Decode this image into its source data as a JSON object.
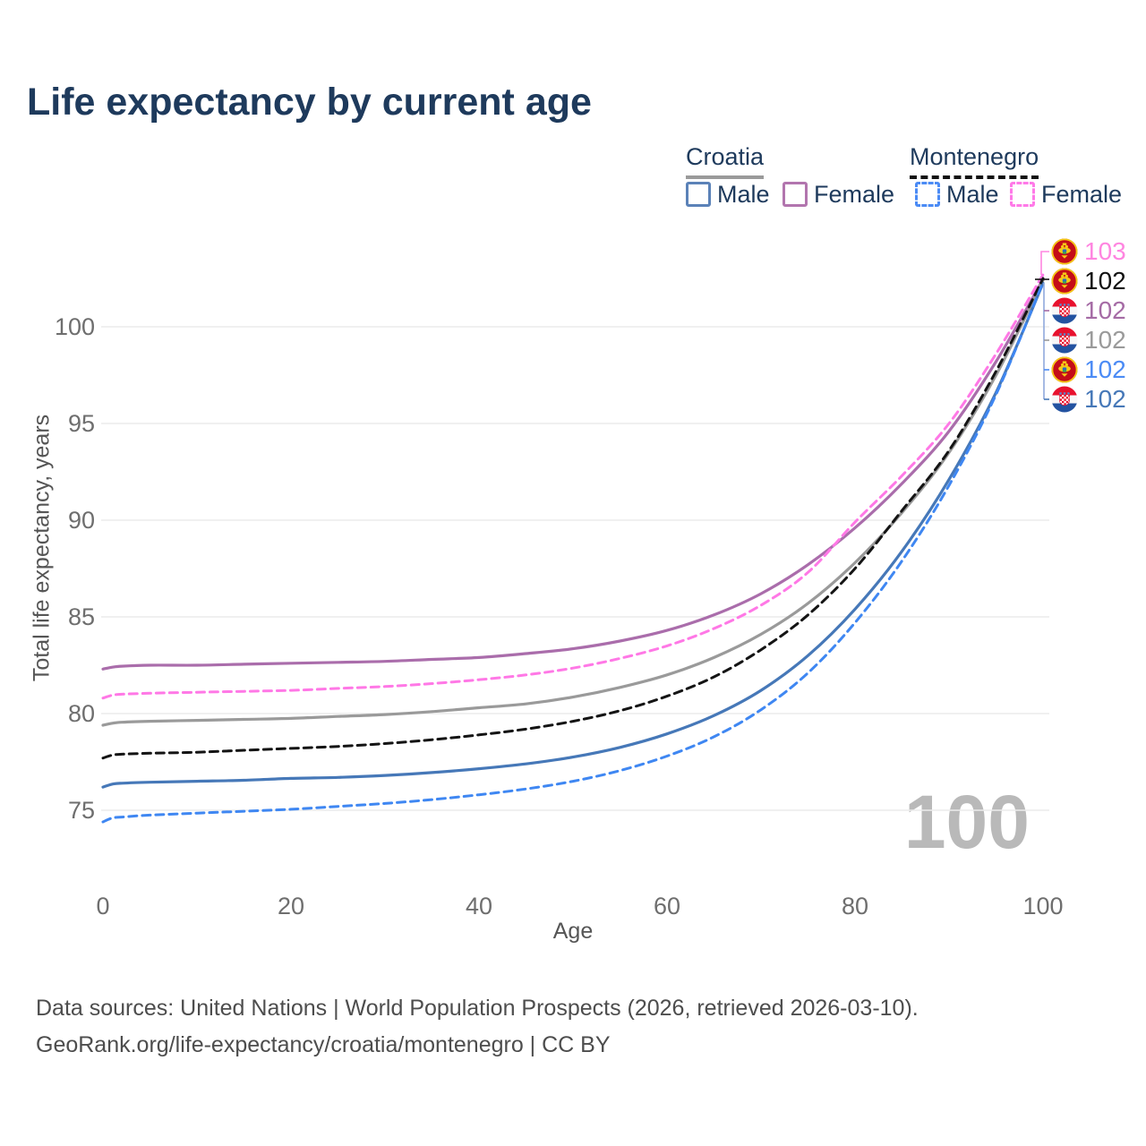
{
  "title": "Life expectancy by current age",
  "legend": {
    "groups": [
      {
        "label": "Croatia",
        "style": "solid"
      },
      {
        "label": "Montenegro",
        "style": "dashed"
      }
    ],
    "items": [
      {
        "label": "Male",
        "country": "Croatia"
      },
      {
        "label": "Female",
        "country": "Croatia"
      },
      {
        "label": "Male",
        "country": "Montenegro"
      },
      {
        "label": "Female",
        "country": "Montenegro"
      }
    ]
  },
  "watermark": "100",
  "end_labels": [
    {
      "country": "Montenegro",
      "series": "Female",
      "value": "103",
      "color": "#ff85e0"
    },
    {
      "country": "Montenegro",
      "series": "Total",
      "value": "102",
      "color": "#111111"
    },
    {
      "country": "Croatia",
      "series": "Female",
      "value": "102",
      "color": "#a56ba5"
    },
    {
      "country": "Croatia",
      "series": "Total",
      "value": "102",
      "color": "#9a9a9a"
    },
    {
      "country": "Montenegro",
      "series": "Male",
      "value": "102",
      "color": "#4b8bf5"
    },
    {
      "country": "Croatia",
      "series": "Male",
      "value": "102",
      "color": "#4678b8"
    }
  ],
  "footer": {
    "line1": "Data sources: United Nations | World Population Prospects (2026, retrieved 2026-03-10).",
    "line2": "GeoRank.org/life-expectancy/croatia/montenegro | CC BY"
  },
  "chart_data": {
    "type": "line",
    "title": "Life expectancy by current age",
    "xlabel": "Age",
    "ylabel": "Total life expectancy, years",
    "xlim": [
      0,
      100
    ],
    "ylim": [
      73.5,
      103.5
    ],
    "xticks": [
      0,
      20,
      40,
      60,
      80,
      100
    ],
    "yticks": [
      75,
      80,
      85,
      90,
      95,
      100
    ],
    "grid": "horizontal",
    "legend_position": "top-right",
    "x": [
      0,
      1,
      2,
      5,
      10,
      15,
      20,
      25,
      30,
      35,
      40,
      45,
      50,
      55,
      60,
      65,
      70,
      75,
      80,
      85,
      90,
      95,
      100
    ],
    "series": [
      {
        "name": "Croatia Female",
        "style": "solid",
        "color": "#aa6dab",
        "values": [
          82.3,
          82.4,
          82.45,
          82.5,
          82.5,
          82.55,
          82.6,
          82.65,
          82.7,
          82.8,
          82.9,
          83.1,
          83.35,
          83.75,
          84.3,
          85.1,
          86.2,
          87.7,
          89.6,
          91.9,
          94.6,
          98.2,
          102.45
        ]
      },
      {
        "name": "Croatia Total",
        "style": "solid",
        "color": "#9a9a9a",
        "values": [
          79.4,
          79.5,
          79.55,
          79.6,
          79.65,
          79.7,
          79.75,
          79.85,
          79.95,
          80.1,
          80.3,
          80.5,
          80.85,
          81.35,
          82.0,
          82.9,
          84.1,
          85.7,
          87.8,
          90.4,
          93.5,
          97.5,
          102.4
        ]
      },
      {
        "name": "Croatia Male",
        "style": "solid",
        "color": "#4678b8",
        "values": [
          76.2,
          76.35,
          76.4,
          76.45,
          76.5,
          76.55,
          76.65,
          76.7,
          76.8,
          76.95,
          77.15,
          77.4,
          77.75,
          78.25,
          78.95,
          79.9,
          81.2,
          83.0,
          85.4,
          88.4,
          92.1,
          96.6,
          102.25
        ]
      },
      {
        "name": "Montenegro Female",
        "style": "dashed",
        "color": "#ff78e6",
        "values": [
          80.8,
          80.95,
          81.0,
          81.05,
          81.1,
          81.15,
          81.2,
          81.3,
          81.4,
          81.55,
          81.75,
          82.0,
          82.35,
          82.85,
          83.5,
          84.4,
          85.6,
          87.3,
          89.9,
          92.3,
          95.0,
          98.6,
          102.7
        ]
      },
      {
        "name": "Montenegro Total",
        "style": "dashed",
        "color": "#141414",
        "values": [
          77.7,
          77.85,
          77.9,
          77.95,
          78.0,
          78.1,
          78.2,
          78.3,
          78.45,
          78.65,
          78.9,
          79.2,
          79.6,
          80.15,
          80.9,
          81.9,
          83.3,
          85.1,
          87.5,
          90.5,
          93.6,
          97.7,
          102.5
        ]
      },
      {
        "name": "Montenegro Male",
        "style": "dashed",
        "color": "#3f87f2",
        "values": [
          74.4,
          74.6,
          74.65,
          74.75,
          74.85,
          74.95,
          75.05,
          75.2,
          75.35,
          75.55,
          75.8,
          76.1,
          76.5,
          77.05,
          77.8,
          78.8,
          80.2,
          82.1,
          84.7,
          87.9,
          91.8,
          96.5,
          102.3
        ]
      }
    ]
  }
}
